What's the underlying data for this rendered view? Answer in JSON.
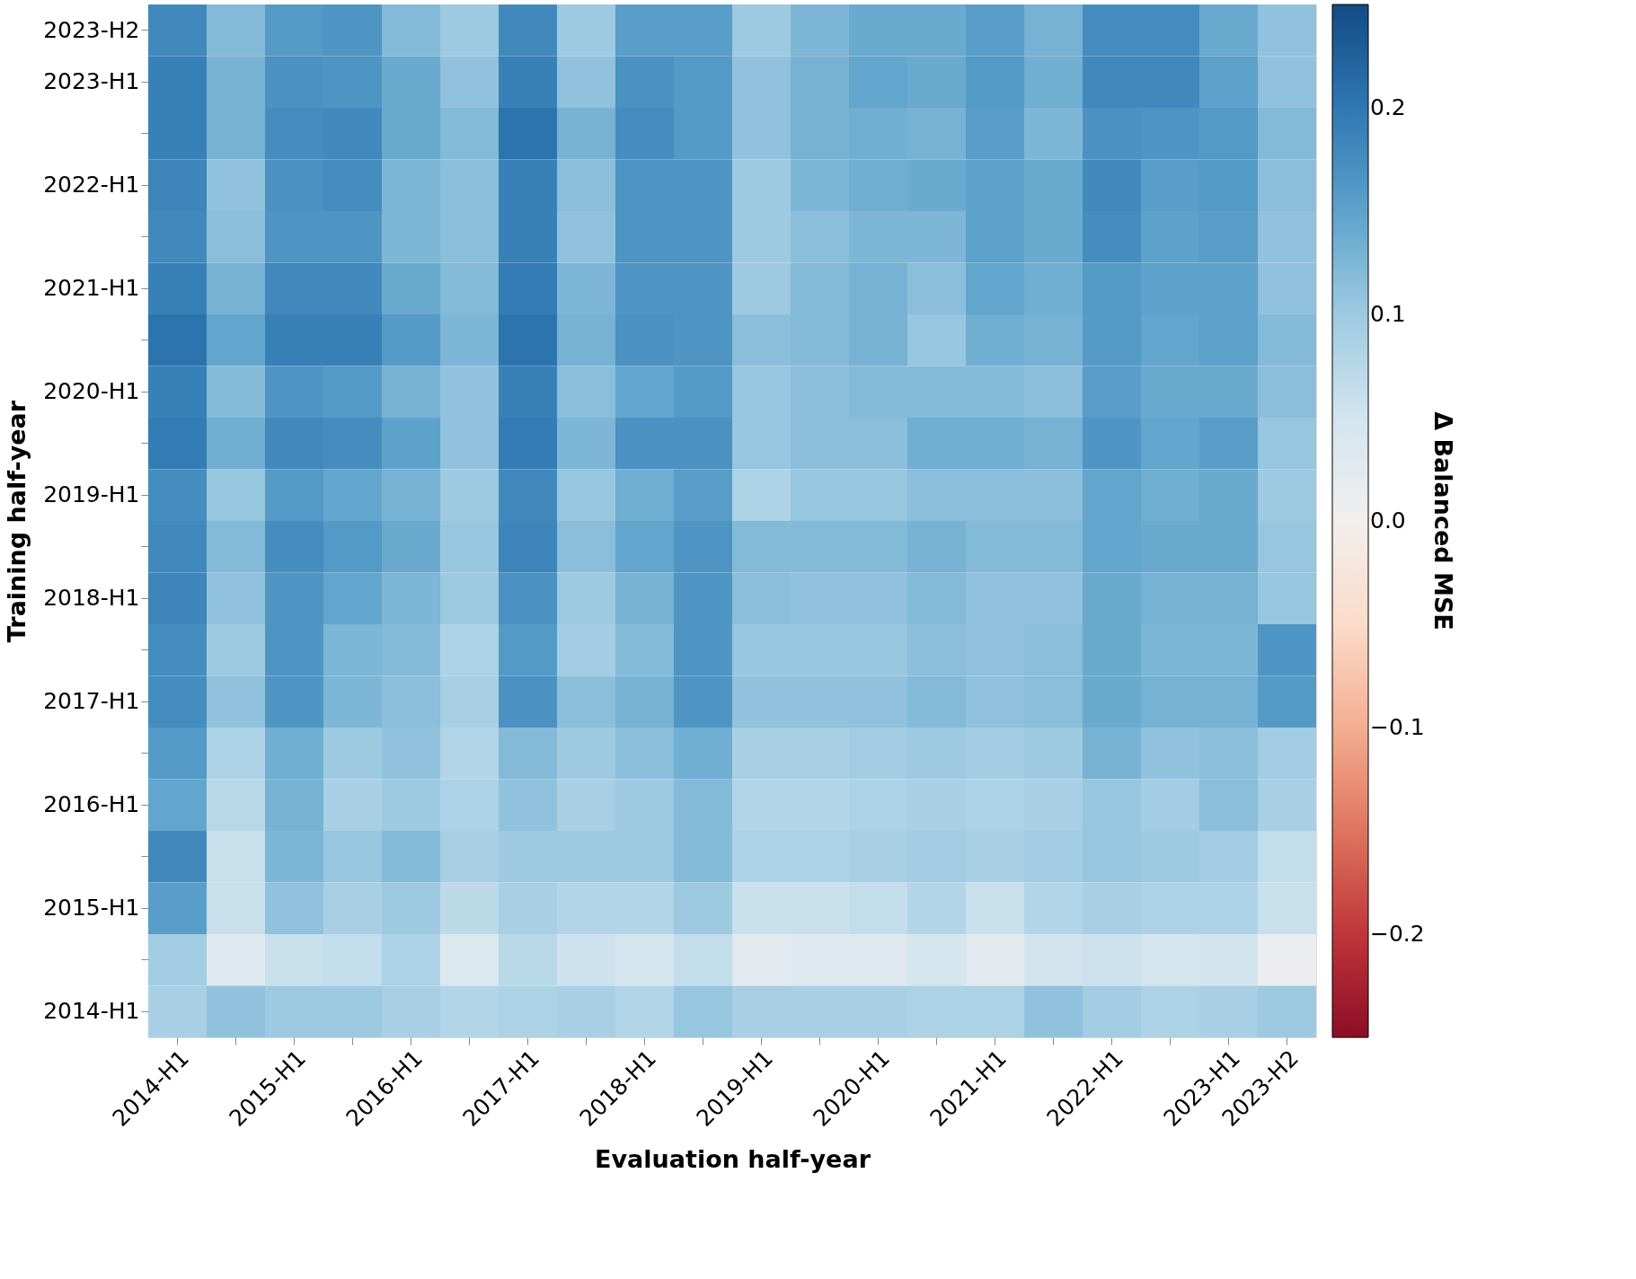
{
  "chart_data": {
    "type": "heatmap",
    "xlabel": "Evaluation half-year",
    "ylabel": "Training half-year",
    "clabel": "Δ Balanced MSE",
    "categories": [
      "2014-H1",
      null,
      "2015-H1",
      null,
      "2016-H1",
      null,
      "2017-H1",
      null,
      "2018-H1",
      null,
      "2019-H1",
      null,
      "2020-H1",
      null,
      "2021-H1",
      null,
      "2022-H1",
      null,
      "2023-H1",
      "2023-H2"
    ],
    "y_categories": [
      "2023-H2",
      "2023-H1",
      null,
      "2022-H1",
      null,
      "2021-H1",
      null,
      "2020-H1",
      null,
      "2019-H1",
      null,
      "2018-H1",
      null,
      "2017-H1",
      null,
      "2016-H1",
      null,
      "2015-H1",
      null,
      "2014-H1"
    ],
    "cells": [
      [
        0.18,
        0.12,
        0.16,
        0.165,
        0.12,
        0.1,
        0.18,
        0.1,
        0.155,
        0.155,
        0.1,
        0.125,
        0.14,
        0.14,
        0.155,
        0.13,
        0.175,
        0.175,
        0.14,
        0.11
      ],
      [
        0.19,
        0.13,
        0.17,
        0.165,
        0.14,
        0.11,
        0.19,
        0.11,
        0.17,
        0.16,
        0.11,
        0.13,
        0.145,
        0.14,
        0.16,
        0.135,
        0.18,
        0.18,
        0.15,
        0.11
      ],
      [
        0.19,
        0.13,
        0.175,
        0.18,
        0.14,
        0.12,
        0.205,
        0.13,
        0.175,
        0.16,
        0.11,
        0.13,
        0.135,
        0.13,
        0.155,
        0.125,
        0.17,
        0.165,
        0.16,
        0.12
      ],
      [
        0.185,
        0.11,
        0.17,
        0.175,
        0.125,
        0.115,
        0.19,
        0.115,
        0.165,
        0.165,
        0.1,
        0.125,
        0.135,
        0.14,
        0.15,
        0.14,
        0.18,
        0.155,
        0.16,
        0.115
      ],
      [
        0.18,
        0.115,
        0.165,
        0.165,
        0.125,
        0.115,
        0.19,
        0.11,
        0.165,
        0.165,
        0.1,
        0.115,
        0.125,
        0.125,
        0.15,
        0.14,
        0.175,
        0.15,
        0.155,
        0.11
      ],
      [
        0.19,
        0.13,
        0.18,
        0.18,
        0.14,
        0.12,
        0.195,
        0.125,
        0.165,
        0.165,
        0.1,
        0.12,
        0.13,
        0.115,
        0.145,
        0.135,
        0.16,
        0.15,
        0.15,
        0.11
      ],
      [
        0.205,
        0.145,
        0.19,
        0.19,
        0.16,
        0.125,
        0.205,
        0.13,
        0.17,
        0.165,
        0.115,
        0.12,
        0.13,
        0.105,
        0.135,
        0.13,
        0.16,
        0.145,
        0.15,
        0.12
      ],
      [
        0.19,
        0.12,
        0.165,
        0.16,
        0.13,
        0.11,
        0.19,
        0.115,
        0.145,
        0.16,
        0.105,
        0.115,
        0.12,
        0.12,
        0.12,
        0.115,
        0.155,
        0.14,
        0.14,
        0.115
      ],
      [
        0.195,
        0.135,
        0.18,
        0.175,
        0.15,
        0.11,
        0.195,
        0.125,
        0.17,
        0.17,
        0.105,
        0.115,
        0.115,
        0.135,
        0.135,
        0.13,
        0.165,
        0.145,
        0.155,
        0.105
      ],
      [
        0.175,
        0.105,
        0.16,
        0.145,
        0.13,
        0.1,
        0.18,
        0.105,
        0.135,
        0.155,
        0.085,
        0.105,
        0.105,
        0.115,
        0.115,
        0.115,
        0.145,
        0.135,
        0.14,
        0.1
      ],
      [
        0.18,
        0.12,
        0.175,
        0.16,
        0.14,
        0.105,
        0.185,
        0.115,
        0.145,
        0.165,
        0.12,
        0.12,
        0.12,
        0.13,
        0.12,
        0.12,
        0.145,
        0.14,
        0.14,
        0.105
      ],
      [
        0.185,
        0.11,
        0.165,
        0.145,
        0.125,
        0.1,
        0.17,
        0.1,
        0.13,
        0.165,
        0.115,
        0.11,
        0.11,
        0.12,
        0.11,
        0.11,
        0.14,
        0.13,
        0.13,
        0.105
      ],
      [
        0.175,
        0.1,
        0.165,
        0.125,
        0.12,
        0.085,
        0.16,
        0.095,
        0.12,
        0.165,
        0.105,
        0.105,
        0.105,
        0.115,
        0.11,
        0.115,
        0.14,
        0.125,
        0.125,
        0.165
      ],
      [
        0.175,
        0.11,
        0.165,
        0.125,
        0.115,
        0.09,
        0.17,
        0.115,
        0.13,
        0.165,
        0.11,
        0.11,
        0.11,
        0.12,
        0.11,
        0.115,
        0.14,
        0.13,
        0.13,
        0.16
      ],
      [
        0.16,
        0.085,
        0.135,
        0.1,
        0.11,
        0.08,
        0.12,
        0.1,
        0.115,
        0.135,
        0.09,
        0.09,
        0.095,
        0.1,
        0.095,
        0.1,
        0.13,
        0.11,
        0.115,
        0.095
      ],
      [
        0.145,
        0.075,
        0.13,
        0.09,
        0.1,
        0.085,
        0.11,
        0.09,
        0.1,
        0.12,
        0.08,
        0.08,
        0.085,
        0.09,
        0.085,
        0.09,
        0.105,
        0.095,
        0.115,
        0.09
      ],
      [
        0.18,
        0.06,
        0.125,
        0.105,
        0.12,
        0.09,
        0.1,
        0.1,
        0.1,
        0.12,
        0.085,
        0.085,
        0.09,
        0.095,
        0.09,
        0.095,
        0.105,
        0.1,
        0.095,
        0.065
      ],
      [
        0.155,
        0.06,
        0.11,
        0.09,
        0.1,
        0.07,
        0.09,
        0.08,
        0.08,
        0.1,
        0.06,
        0.06,
        0.065,
        0.08,
        0.06,
        0.08,
        0.09,
        0.085,
        0.085,
        0.06
      ],
      [
        0.095,
        0.03,
        0.06,
        0.065,
        0.085,
        0.035,
        0.075,
        0.055,
        0.045,
        0.065,
        0.025,
        0.03,
        0.03,
        0.045,
        0.025,
        0.05,
        0.055,
        0.045,
        0.05,
        0.01
      ],
      [
        0.09,
        0.11,
        0.1,
        0.1,
        0.09,
        0.08,
        0.085,
        0.09,
        0.08,
        0.105,
        0.09,
        0.09,
        0.09,
        0.085,
        0.085,
        0.11,
        0.095,
        0.085,
        0.09,
        0.1
      ]
    ],
    "clim": [
      -0.25,
      0.25
    ],
    "cticks": [
      {
        "value": -0.2,
        "label": "−0.2"
      },
      {
        "value": -0.1,
        "label": "−0.1"
      },
      {
        "value": 0,
        "label": "0.0"
      },
      0.1,
      0.2
    ]
  }
}
